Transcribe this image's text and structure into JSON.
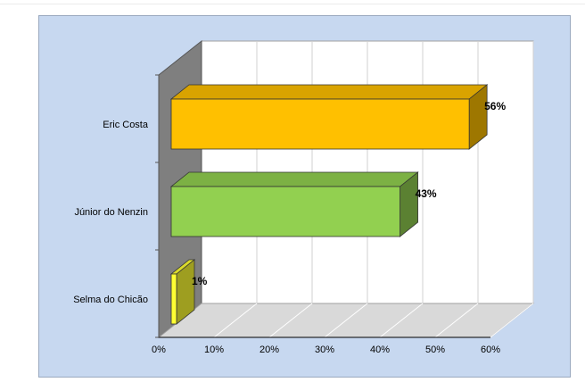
{
  "chart_data": {
    "type": "bar",
    "orientation": "horizontal",
    "categories": [
      "Eric Costa",
      "Júnior do Nenzin",
      "Selma do Chicão"
    ],
    "values": [
      56,
      43,
      1
    ],
    "value_labels": [
      "56%",
      "43%",
      "1%"
    ],
    "colors": [
      "#ffc000",
      "#92d050",
      "#ffff33"
    ],
    "xlim": [
      0,
      60
    ],
    "x_ticks": [
      "0%",
      "10%",
      "20%",
      "30%",
      "40%",
      "50%",
      "60%"
    ],
    "gridlines": true,
    "style": "3d",
    "title": "",
    "xlabel": "",
    "ylabel": ""
  }
}
